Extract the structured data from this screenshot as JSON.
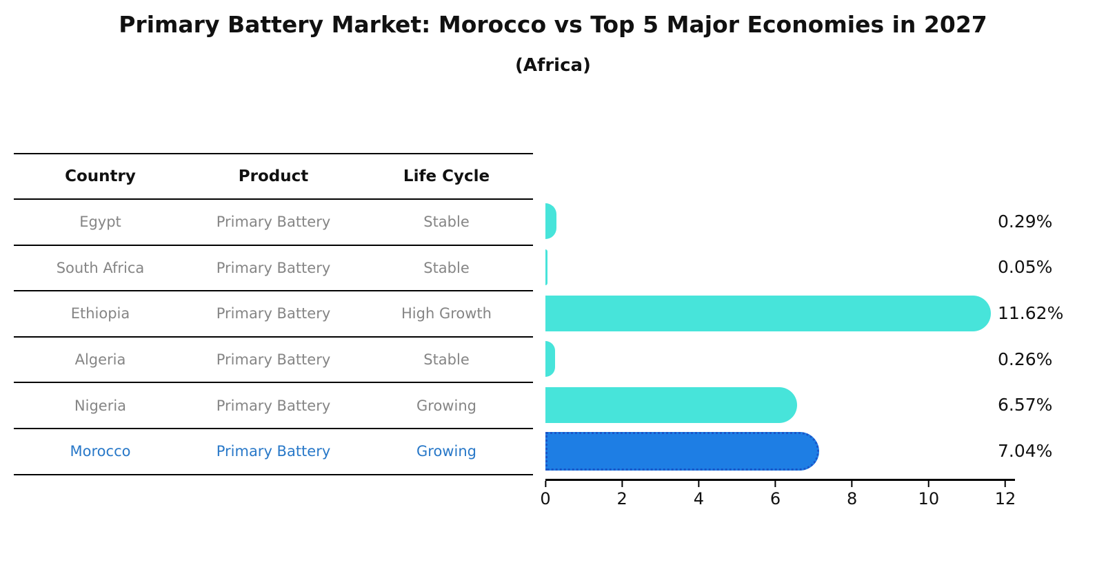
{
  "title": "Primary Battery Market: Morocco vs Top 5 Major Economies in 2027",
  "subtitle": "(Africa)",
  "table": {
    "headers": [
      "Country",
      "Product",
      "Life Cycle"
    ],
    "rows": [
      {
        "country": "Egypt",
        "product": "Primary Battery",
        "life_cycle": "Stable",
        "highlight": false
      },
      {
        "country": "South Africa",
        "product": "Primary Battery",
        "life_cycle": "Stable",
        "highlight": false
      },
      {
        "country": "Ethiopia",
        "product": "Primary Battery",
        "life_cycle": "High Growth",
        "highlight": false
      },
      {
        "country": "Algeria",
        "product": "Primary Battery",
        "life_cycle": "Stable",
        "highlight": false
      },
      {
        "country": "Nigeria",
        "product": "Primary Battery",
        "life_cycle": "Growing",
        "highlight": false
      },
      {
        "country": "Morocco",
        "product": "Primary Battery",
        "life_cycle": "Growing",
        "highlight": true
      }
    ]
  },
  "chart_data": {
    "type": "bar",
    "orientation": "horizontal",
    "title": "Primary Battery Market: Morocco vs Top 5 Major Economies in 2027",
    "subtitle": "(Africa)",
    "categories": [
      "Egypt",
      "South Africa",
      "Ethiopia",
      "Algeria",
      "Nigeria",
      "Morocco"
    ],
    "values": [
      0.29,
      0.05,
      11.62,
      0.26,
      6.57,
      7.04
    ],
    "value_labels": [
      "0.29%",
      "0.05%",
      "11.62%",
      "0.26%",
      "6.57%",
      "7.04%"
    ],
    "xlim": [
      0,
      12
    ],
    "xticks": [
      0,
      2,
      4,
      6,
      8,
      10,
      12
    ],
    "grid": false,
    "legend": false,
    "bar_color": "#47E4DA",
    "highlight_color": "#1E7EE4",
    "highlight_border_color": "#1A55C8",
    "highlight_text_color": "#2878C8"
  }
}
